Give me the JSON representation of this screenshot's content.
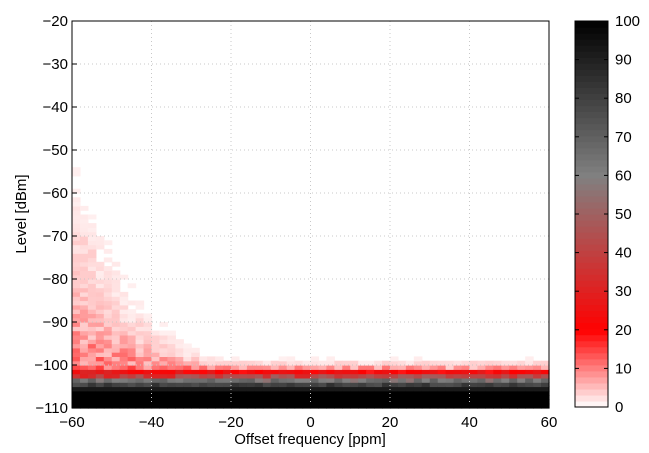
{
  "chart_data": {
    "type": "heatmap",
    "title": "",
    "xlabel": "Offset frequency [ppm]",
    "ylabel": "Level [dBm]",
    "xlim": [
      -60,
      60
    ],
    "ylim": [
      -110,
      -20
    ],
    "x_ticks": [
      -60,
      -40,
      -20,
      0,
      20,
      40,
      60
    ],
    "y_ticks": [
      -110,
      -100,
      -90,
      -80,
      -70,
      -60,
      -50,
      -40,
      -30,
      -20
    ],
    "x_tick_labels": [
      "−60",
      "−40",
      "−20",
      "0",
      "20",
      "40",
      "60"
    ],
    "y_tick_labels": [
      "−110",
      "−100",
      "−90",
      "−80",
      "−70",
      "−60",
      "−50",
      "−40",
      "−30",
      "−20"
    ],
    "x_bin_width": 2,
    "y_bin_width": 1,
    "colorbar": {
      "range": [
        0,
        100
      ],
      "ticks": [
        0,
        10,
        20,
        30,
        40,
        50,
        60,
        70,
        80,
        90,
        100
      ],
      "colormap": "white-red-gray-black",
      "colors": [
        "#ffffff",
        "#ff0000",
        "#808080",
        "#000000"
      ]
    },
    "grid": true,
    "noise_floor_dBm": -102,
    "description_note_free_cells": [
      {
        "x_range": [
          -60,
          60
        ],
        "y_range": [
          -110,
          -106
        ],
        "value": 100
      },
      {
        "x_range": [
          -60,
          60
        ],
        "y_range": [
          -106,
          -105
        ],
        "value": 92
      },
      {
        "x_range": [
          -60,
          60
        ],
        "y_range": [
          -105,
          -104
        ],
        "value": 75
      },
      {
        "x_range": [
          -60,
          60
        ],
        "y_range": [
          -104,
          -103
        ],
        "value": 55
      }
    ]
  }
}
